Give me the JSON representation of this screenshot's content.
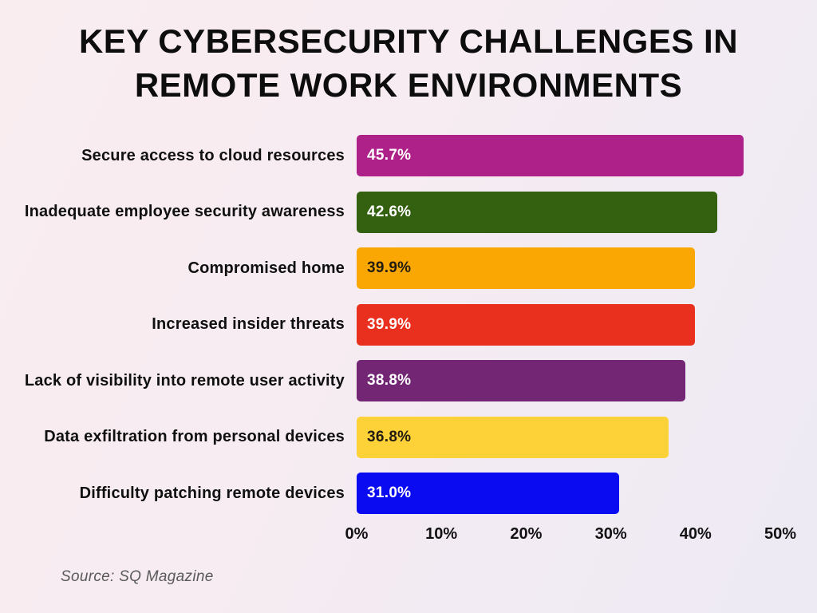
{
  "title": "KEY CYBERSECURITY CHALLENGES IN REMOTE WORK ENVIRONMENTS",
  "title_lines": {
    "line1": "KEY CYBERSECURITY CHALLENGES IN",
    "line2": "REMOTE WORK ENVIRONMENTS"
  },
  "source": "Source: SQ Magazine",
  "colors": {
    "background_start": "#f9edf0",
    "background_end": "#edeaf4",
    "title": "#0d0d0d",
    "category_label": "#101010",
    "source_text": "#595959"
  },
  "chart_data": {
    "type": "bar",
    "orientation": "horizontal",
    "title": "KEY CYBERSECURITY CHALLENGES IN REMOTE WORK ENVIRONMENTS",
    "categories": [
      "Secure access to cloud resources",
      "Inadequate employee security awareness",
      "Compromised home",
      "Increased insider threats",
      "Lack of visibility into remote user activity",
      "Data exfiltration from personal devices",
      "Difficulty patching remote devices"
    ],
    "values": [
      45.7,
      42.6,
      39.9,
      39.9,
      38.8,
      36.8,
      31.0
    ],
    "value_labels": [
      "45.7%",
      "42.6%",
      "39.9%",
      "39.9%",
      "38.8%",
      "36.8%",
      "31.0%"
    ],
    "bar_colors": [
      "#ae2189",
      "#346110",
      "#fba703",
      "#e92f1e",
      "#722674",
      "#fdd138",
      "#0b0bf2"
    ],
    "value_label_colors": [
      "#ffffff",
      "#ffffff",
      "#221c12",
      "#ffffff",
      "#ffffff",
      "#221c12",
      "#ffffff"
    ],
    "xlabel": "",
    "ylabel": "",
    "xlim": [
      0,
      50
    ],
    "x_ticks": [
      "0%",
      "10%",
      "20%",
      "30%",
      "40%",
      "50%"
    ],
    "x_tick_values": [
      0,
      10,
      20,
      30,
      40,
      50
    ],
    "grid": false,
    "legend": false,
    "value_labels_inside_bars": true,
    "source": "Source: SQ Magazine"
  }
}
